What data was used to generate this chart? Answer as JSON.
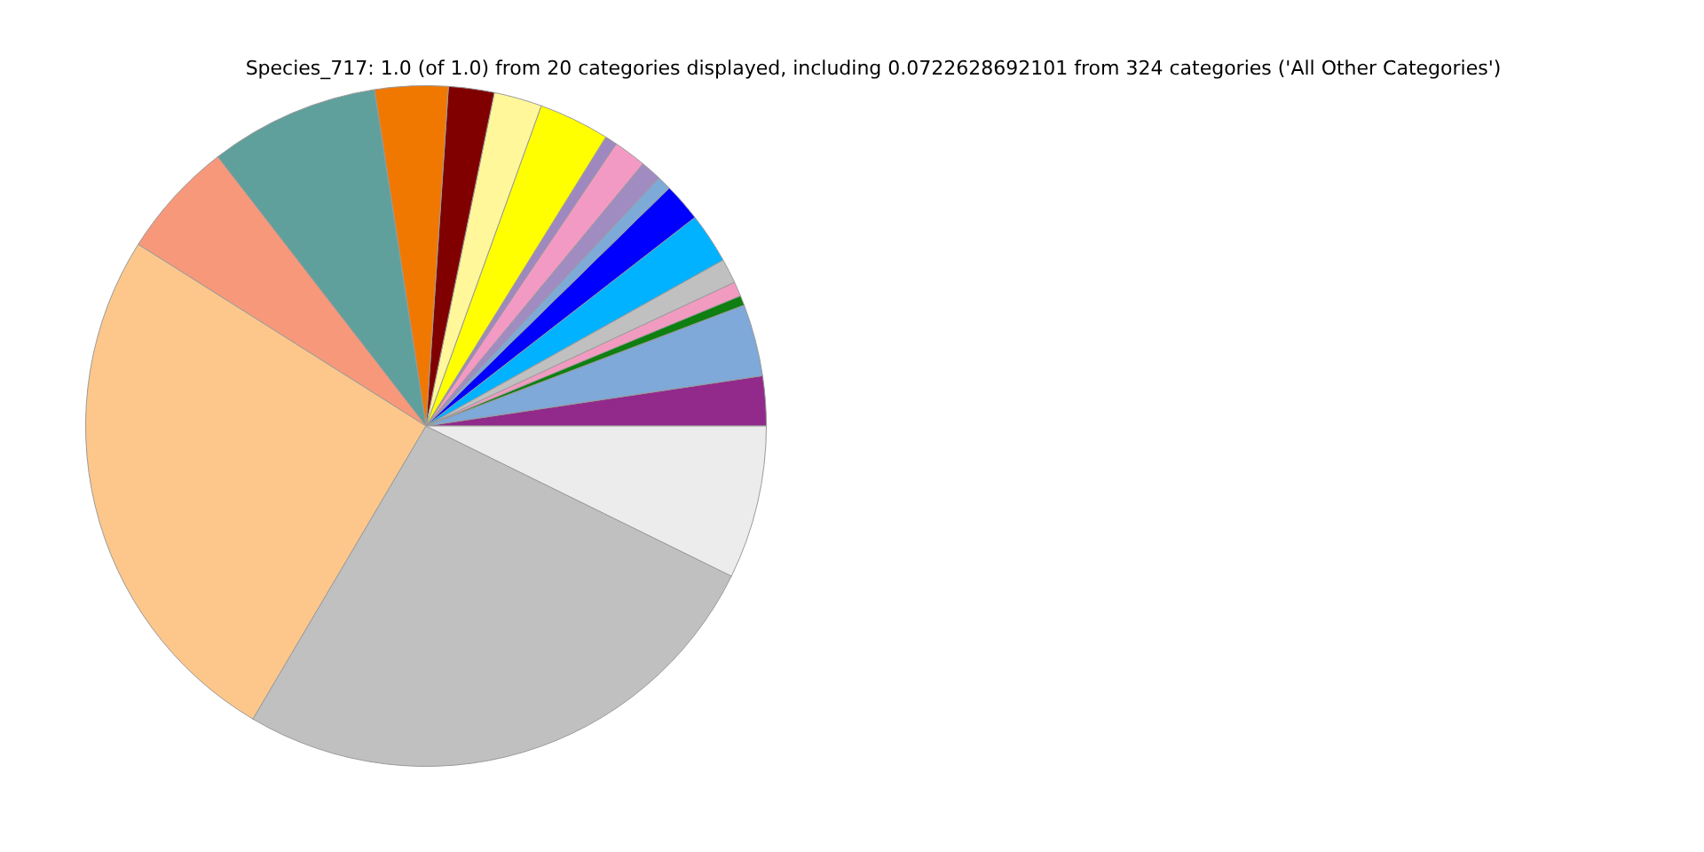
{
  "chart_data": {
    "type": "pie",
    "title": "Species_717: 1.0 (of 1.0) from 20 categories displayed, including 0.0722628692101 from 324 categories ('All Other Categories')",
    "categories": [
      null,
      null,
      null,
      null,
      null,
      null,
      null,
      null,
      null,
      null,
      null,
      null,
      null,
      null,
      null,
      null,
      null,
      null,
      null,
      null
    ],
    "values": [
      2.36,
      3.42,
      0.47,
      0.69,
      1.17,
      2.39,
      1.83,
      0.67,
      1.0,
      1.56,
      0.58,
      3.36,
      2.28,
      2.17,
      3.47,
      8.06,
      5.56,
      25.47,
      26.22,
      7.27
    ],
    "colors": [
      "#912a8b",
      "#7ea9d9",
      "#0f7f12",
      "#f29bc1",
      "#c0c0c0",
      "#00b2ff",
      "#0000ff",
      "#7eaad8",
      "#a08cc1",
      "#f39ac4",
      "#9f88c0",
      "#ffff00",
      "#fff79a",
      "#800000",
      "#f07800",
      "#5fa09c",
      "#f7987a",
      "#fdc78b",
      "#c0c0c0",
      "#ececec"
    ],
    "legend": false
  }
}
